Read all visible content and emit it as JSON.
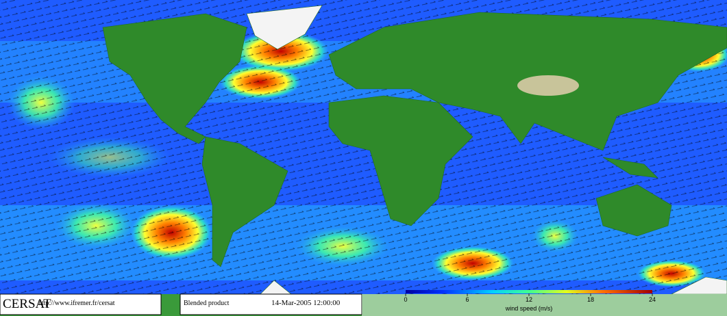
{
  "footer": {
    "logo": "CERSAT",
    "url": "http://www.ifremer.fr/cersat",
    "product": "Blended product",
    "date": "14-Mar-2005 12:00:00"
  },
  "colorbar": {
    "label": "wind speed (m/s)",
    "lim": [
      0,
      24
    ],
    "ticks": [
      0,
      6,
      12,
      18,
      24
    ]
  }
}
